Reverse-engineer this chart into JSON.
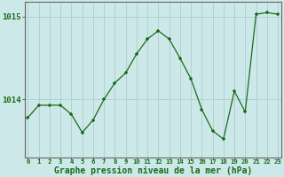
{
  "x": [
    0,
    1,
    2,
    3,
    4,
    5,
    6,
    7,
    8,
    9,
    10,
    11,
    12,
    13,
    14,
    15,
    16,
    17,
    18,
    19,
    20,
    21,
    22,
    23
  ],
  "y": [
    1013.78,
    1013.93,
    1013.93,
    1013.93,
    1013.82,
    1013.6,
    1013.75,
    1014.0,
    1014.2,
    1014.32,
    1014.55,
    1014.73,
    1014.83,
    1014.73,
    1014.5,
    1014.25,
    1013.88,
    1013.62,
    1013.52,
    1014.1,
    1013.85,
    1015.03,
    1015.05,
    1015.03
  ],
  "line_color": "#1a6b1a",
  "marker": "+",
  "background_color": "#cde8e8",
  "grid_color": "#aacece",
  "xlabel_label": "Graphe pression niveau de la mer (hPa)",
  "ylim": [
    1013.3,
    1015.18
  ],
  "xlim": [
    -0.3,
    23.3
  ],
  "tick_color": "#1a6b1a",
  "label_fontsize": 7.0,
  "xtick_fontsize": 5.2,
  "ytick_fontsize": 6.5
}
